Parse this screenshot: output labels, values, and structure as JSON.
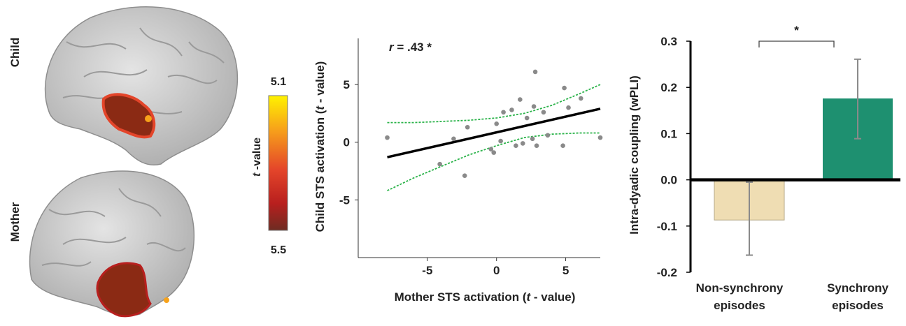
{
  "brain_panel": {
    "child_label": "Child",
    "mother_label": "Mother",
    "colorbar": {
      "label_italic": "t",
      "label_rest": " -value",
      "top_value": "5.1",
      "bottom_value": "5.5",
      "colors": [
        "#fff200",
        "#f7a21a",
        "#e4452a",
        "#b81f1e",
        "#6e2c22"
      ]
    },
    "brain_color": "#c9c9c9",
    "activation_color": "#8b2a14"
  },
  "chart_data": [
    {
      "type": "scatter",
      "title": "",
      "annotation": {
        "italic": "r",
        "text": " = .43 *"
      },
      "xlabel": {
        "before": "Mother STS activation (",
        "italic": "t",
        "after": " - value)"
      },
      "ylabel": {
        "before": "Child STS activation (",
        "italic": "t",
        "after": " - value)"
      },
      "xlim": [
        -10,
        7.5
      ],
      "ylim": [
        -10,
        9
      ],
      "xticks": [
        -5,
        0,
        5
      ],
      "yticks": [
        5,
        0,
        -5
      ],
      "points": [
        [
          -7.9,
          0.4
        ],
        [
          -4.1,
          -1.9
        ],
        [
          -3.1,
          0.3
        ],
        [
          -2.3,
          -2.9
        ],
        [
          -2.1,
          1.3
        ],
        [
          -0.4,
          -0.6
        ],
        [
          -0.2,
          -0.9
        ],
        [
          0.0,
          1.6
        ],
        [
          0.3,
          0.1
        ],
        [
          0.5,
          2.6
        ],
        [
          1.1,
          2.8
        ],
        [
          1.4,
          -0.3
        ],
        [
          1.7,
          3.7
        ],
        [
          1.9,
          -0.1
        ],
        [
          2.2,
          2.1
        ],
        [
          2.6,
          0.3
        ],
        [
          2.7,
          3.1
        ],
        [
          2.8,
          6.1
        ],
        [
          2.9,
          -0.3
        ],
        [
          3.4,
          2.6
        ],
        [
          3.7,
          0.6
        ],
        [
          4.8,
          -0.3
        ],
        [
          4.9,
          4.7
        ],
        [
          5.2,
          3.0
        ],
        [
          6.1,
          3.8
        ],
        [
          7.5,
          0.4
        ]
      ],
      "fit_line": {
        "x": [
          -7.9,
          7.5
        ],
        "y": [
          -1.3,
          2.9
        ]
      },
      "ci_upper": {
        "x": [
          -7.9,
          -6,
          -4,
          -2,
          0,
          2,
          4,
          6,
          7.5
        ],
        "y": [
          1.7,
          1.7,
          1.8,
          1.9,
          2.1,
          2.5,
          3.2,
          4.2,
          5.0
        ]
      },
      "ci_lower": {
        "x": [
          -7.9,
          -6,
          -4,
          -2,
          0,
          2,
          4,
          6,
          7.5
        ],
        "y": [
          -4.2,
          -3.1,
          -2.1,
          -1.1,
          -0.3,
          0.4,
          0.7,
          0.8,
          0.8
        ]
      },
      "colors": {
        "points": "#8a8a8a",
        "fit": "#000000",
        "ci": "#2bb34a"
      }
    },
    {
      "type": "bar",
      "title": "",
      "categories": [
        {
          "line1": "Non-synchrony",
          "line2": "episodes"
        },
        {
          "line1": "Synchrony",
          "line2": "episodes"
        }
      ],
      "values": [
        -0.087,
        0.176
      ],
      "errors": [
        [
          -0.163,
          -0.005
        ],
        [
          0.089,
          0.261
        ]
      ],
      "colors": [
        "#efddb3",
        "#1e9070"
      ],
      "ylabel": "Intra-dyadic coupling (wPLI)",
      "ylim": [
        -0.2,
        0.3
      ],
      "yticks": [
        "0.3",
        "0.2",
        "0.1",
        "0.0",
        "-0.1",
        "-0.2"
      ],
      "significance": "*"
    }
  ]
}
